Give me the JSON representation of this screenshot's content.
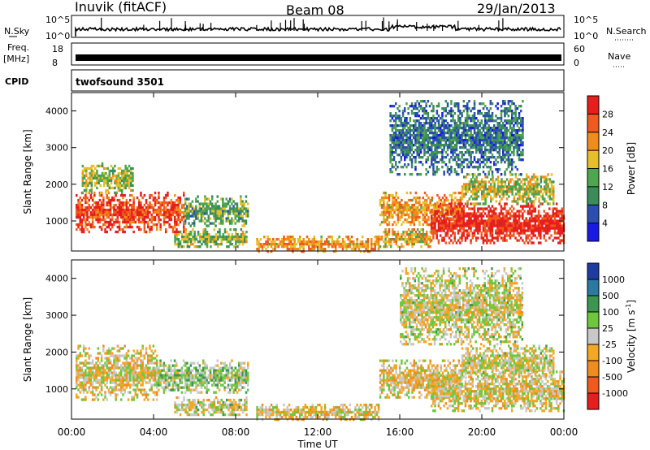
{
  "header": {
    "station": "Inuvik (fitACF)",
    "beam": "Beam 08",
    "date": "29/Jan/2013"
  },
  "status_panels": {
    "nsky_label": "N.Sky",
    "nsearch_label": "N.Search",
    "noise_ticks": [
      "10^5",
      "10^0"
    ],
    "freq_label": "Freq.",
    "freq_unit": "[MHz]",
    "freq_ticks": [
      "18",
      "8"
    ],
    "nave_label": "Nave",
    "nave_ticks": [
      "60",
      "0"
    ],
    "cpid_label": "CPID",
    "cpid_value": "twofsound 3501"
  },
  "colors": {
    "power_scale": [
      "#1a1ae6",
      "#2a4fb0",
      "#3c8c5a",
      "#4ea64e",
      "#e6c02a",
      "#f08c1e",
      "#f05a1e",
      "#e61e1e"
    ],
    "velocity_scale": [
      "#e61e1e",
      "#f05a1e",
      "#f08c1e",
      "#f5a623",
      "#c8c8c8",
      "#6ec83c",
      "#3c9650",
      "#2a7aa0",
      "#1e3ca0"
    ]
  },
  "chart_data": [
    {
      "type": "heatmap",
      "panel": "power",
      "xlabel": "Time UT",
      "ylabel": "Slant Range [km]",
      "xlim": [
        0,
        24
      ],
      "ylim": [
        180,
        4500
      ],
      "x_ticks": [
        0,
        4,
        8,
        12,
        16,
        20,
        24
      ],
      "x_tick_labels": [
        "00:00",
        "04:00",
        "08:00",
        "12:00",
        "16:00",
        "20:00",
        "00:00"
      ],
      "y_ticks": [
        1000,
        2000,
        3000,
        4000
      ],
      "colorbar": {
        "label": "Power [dB]",
        "range": [
          0,
          30
        ],
        "ticks": [
          "28",
          "24",
          "20",
          "16",
          "12",
          "8",
          "4"
        ]
      },
      "echo_regions": [
        {
          "t": [
            0.2,
            5.5
          ],
          "r": [
            700,
            1800
          ],
          "value": 26
        },
        {
          "t": [
            5.5,
            8.6
          ],
          "r": [
            900,
            1700
          ],
          "value": 12
        },
        {
          "t": [
            0.5,
            3.0
          ],
          "r": [
            1800,
            2600
          ],
          "value": 14
        },
        {
          "t": [
            5.0,
            8.5
          ],
          "r": [
            300,
            800
          ],
          "value": 14
        },
        {
          "t": [
            9.0,
            15.0
          ],
          "r": [
            200,
            600
          ],
          "value": 20
        },
        {
          "t": [
            15.0,
            19.0
          ],
          "r": [
            900,
            1800
          ],
          "value": 20
        },
        {
          "t": [
            15.0,
            17.5
          ],
          "r": [
            300,
            800
          ],
          "value": 18
        },
        {
          "t": [
            17.5,
            24.0
          ],
          "r": [
            400,
            1500
          ],
          "value": 28
        },
        {
          "t": [
            19.0,
            23.5
          ],
          "r": [
            1500,
            2300
          ],
          "value": 16
        },
        {
          "t": [
            15.5,
            22.0
          ],
          "r": [
            2300,
            4300
          ],
          "value": 8
        }
      ]
    },
    {
      "type": "heatmap",
      "panel": "velocity",
      "xlabel": "Time UT",
      "ylabel": "Slant Range [km]",
      "xlim": [
        0,
        24
      ],
      "ylim": [
        180,
        4500
      ],
      "x_ticks": [
        0,
        4,
        8,
        12,
        16,
        20,
        24
      ],
      "x_tick_labels": [
        "00:00",
        "04:00",
        "08:00",
        "12:00",
        "16:00",
        "20:00",
        "00:00"
      ],
      "y_ticks": [
        1000,
        2000,
        3000,
        4000
      ],
      "colorbar": {
        "label": "Velocity [m s^-1]",
        "range": [
          -1000,
          1000
        ],
        "ticks": [
          "1000",
          "500",
          "100",
          "25",
          "-25",
          "-100",
          "-500",
          "-1000"
        ]
      },
      "echo_regions": [
        {
          "t": [
            0.2,
            4.2
          ],
          "r": [
            700,
            2200
          ],
          "value": -100
        },
        {
          "t": [
            4.2,
            8.6
          ],
          "r": [
            900,
            1800
          ],
          "value": 150
        },
        {
          "t": [
            5.0,
            8.5
          ],
          "r": [
            300,
            800
          ],
          "value": 0
        },
        {
          "t": [
            9.0,
            15.0
          ],
          "r": [
            200,
            600
          ],
          "value": -100
        },
        {
          "t": [
            15.0,
            19.0
          ],
          "r": [
            800,
            1800
          ],
          "value": -100
        },
        {
          "t": [
            17.5,
            24.0
          ],
          "r": [
            400,
            1500
          ],
          "value": -80
        },
        {
          "t": [
            19.0,
            23.5
          ],
          "r": [
            1300,
            2200
          ],
          "value": 0
        },
        {
          "t": [
            16.0,
            22.0
          ],
          "r": [
            2200,
            4300
          ],
          "value": 0
        }
      ]
    }
  ]
}
